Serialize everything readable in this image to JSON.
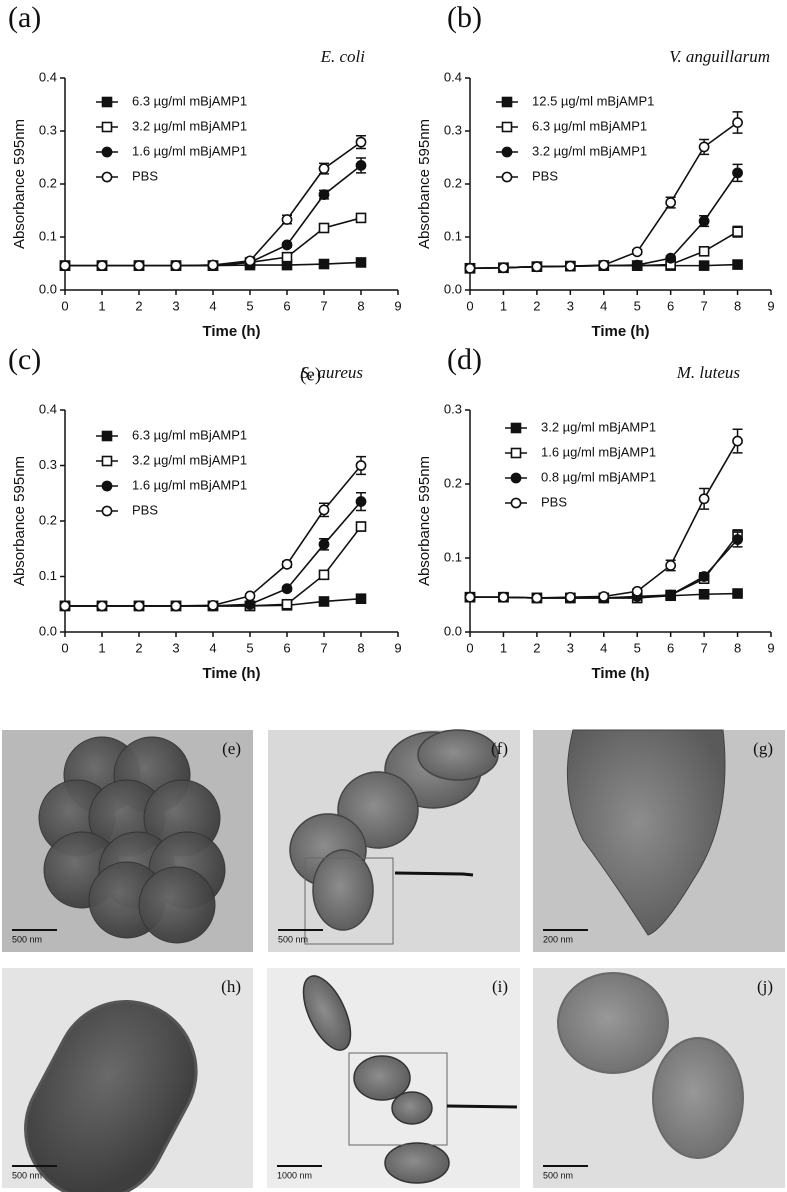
{
  "chart_data": [
    {
      "type": "line",
      "panel_label": "(a)",
      "title": "E. coli",
      "y_label": "Absorbance 595nm",
      "x_label": "Time (h)",
      "x": [
        0,
        1,
        2,
        3,
        4,
        5,
        6,
        7,
        8
      ],
      "xlim": [
        0,
        9
      ],
      "xticks": [
        0,
        1,
        2,
        3,
        4,
        5,
        6,
        7,
        8,
        9
      ],
      "ylim": [
        0,
        0.4
      ],
      "yticks": [
        {
          "value": 0,
          "label": "0.0"
        },
        0.1,
        0.2,
        0.3,
        0.4
      ],
      "series": [
        {
          "name": "6.3 µg/ml mBjAMP1",
          "color": "#111111",
          "marker": "square-filled",
          "values": [
            0.046,
            0.046,
            0.046,
            0.046,
            0.046,
            0.047,
            0.047,
            0.049,
            0.052
          ],
          "errors": [
            0.002,
            0.002,
            0.002,
            0.002,
            0.002,
            0.002,
            0.002,
            0.002,
            0.002
          ]
        },
        {
          "name": "3.2 µg/ml mBjAMP1",
          "color": "#111111",
          "marker": "square-open",
          "values": [
            0.046,
            0.046,
            0.046,
            0.046,
            0.046,
            0.052,
            0.062,
            0.117,
            0.136
          ],
          "errors": [
            0.002,
            0.002,
            0.002,
            0.002,
            0.002,
            0.003,
            0.004,
            0.005,
            0.005
          ]
        },
        {
          "name": "1.6 µg/ml mBjAMP1",
          "color": "#111111",
          "marker": "circle-filled",
          "values": [
            0.046,
            0.046,
            0.046,
            0.046,
            0.047,
            0.052,
            0.085,
            0.18,
            0.235
          ],
          "errors": [
            0.002,
            0.002,
            0.002,
            0.002,
            0.002,
            0.003,
            0.004,
            0.008,
            0.014
          ]
        },
        {
          "name": "PBS",
          "color": "#111111",
          "marker": "circle-open",
          "values": [
            0.046,
            0.046,
            0.046,
            0.046,
            0.047,
            0.055,
            0.133,
            0.229,
            0.279
          ],
          "errors": [
            0.002,
            0.002,
            0.002,
            0.002,
            0.002,
            0.003,
            0.008,
            0.01,
            0.012
          ]
        }
      ]
    },
    {
      "type": "line",
      "panel_label": "(b)",
      "title": "V. anguillarum",
      "y_label": "Absorbance 595nm",
      "x_label": "Time (h)",
      "x": [
        0,
        1,
        2,
        3,
        4,
        5,
        6,
        7,
        8
      ],
      "xlim": [
        0,
        9
      ],
      "xticks": [
        0,
        1,
        2,
        3,
        4,
        5,
        6,
        7,
        8,
        9
      ],
      "ylim": [
        0,
        0.4
      ],
      "yticks": [
        {
          "value": 0,
          "label": "0.0"
        },
        0.1,
        0.2,
        0.3,
        0.4
      ],
      "series": [
        {
          "name": "12.5 µg/ml mBjAMP1",
          "color": "#111111",
          "marker": "square-filled",
          "values": [
            0.041,
            0.042,
            0.044,
            0.045,
            0.046,
            0.046,
            0.046,
            0.046,
            0.048
          ],
          "errors": [
            0.002,
            0.002,
            0.002,
            0.002,
            0.002,
            0.002,
            0.002,
            0.002,
            0.002
          ]
        },
        {
          "name": "6.3 µg/ml mBjAMP1",
          "color": "#111111",
          "marker": "square-open",
          "values": [
            0.041,
            0.042,
            0.044,
            0.045,
            0.046,
            0.046,
            0.048,
            0.073,
            0.11
          ],
          "errors": [
            0.002,
            0.002,
            0.002,
            0.002,
            0.002,
            0.002,
            0.003,
            0.005,
            0.01
          ]
        },
        {
          "name": "3.2 µg/ml mBjAMP1",
          "color": "#111111",
          "marker": "circle-filled",
          "values": [
            0.041,
            0.042,
            0.044,
            0.045,
            0.046,
            0.047,
            0.06,
            0.13,
            0.221
          ],
          "errors": [
            0.002,
            0.002,
            0.002,
            0.002,
            0.002,
            0.002,
            0.004,
            0.01,
            0.016
          ]
        },
        {
          "name": "PBS",
          "color": "#111111",
          "marker": "circle-open",
          "values": [
            0.041,
            0.042,
            0.044,
            0.045,
            0.047,
            0.072,
            0.165,
            0.27,
            0.316
          ],
          "errors": [
            0.002,
            0.002,
            0.002,
            0.002,
            0.002,
            0.004,
            0.01,
            0.014,
            0.02
          ]
        }
      ]
    },
    {
      "type": "line",
      "panel_label": "(c)",
      "title": "S. aureus",
      "annotation": "(e)",
      "y_label": "Absorbance 595nm",
      "x_label": "Time (h)",
      "x": [
        0,
        1,
        2,
        3,
        4,
        5,
        6,
        7,
        8
      ],
      "xlim": [
        0,
        9
      ],
      "xticks": [
        0,
        1,
        2,
        3,
        4,
        5,
        6,
        7,
        8,
        9
      ],
      "ylim": [
        0,
        0.4
      ],
      "yticks": [
        {
          "value": 0,
          "label": "0.0"
        },
        0.1,
        0.2,
        0.3,
        0.4
      ],
      "series": [
        {
          "name": "6.3 µg/ml mBjAMP1",
          "color": "#111111",
          "marker": "square-filled",
          "values": [
            0.047,
            0.047,
            0.047,
            0.047,
            0.047,
            0.047,
            0.048,
            0.055,
            0.06
          ],
          "errors": [
            0.002,
            0.002,
            0.002,
            0.002,
            0.002,
            0.002,
            0.002,
            0.002,
            0.002
          ]
        },
        {
          "name": "3.2 µg/ml mBjAMP1",
          "color": "#111111",
          "marker": "square-open",
          "values": [
            0.047,
            0.047,
            0.047,
            0.047,
            0.047,
            0.047,
            0.05,
            0.103,
            0.19
          ],
          "errors": [
            0.002,
            0.002,
            0.002,
            0.002,
            0.002,
            0.002,
            0.003,
            0.006,
            0.008
          ]
        },
        {
          "name": "1.6 µg/ml mBjAMP1",
          "color": "#111111",
          "marker": "circle-filled",
          "values": [
            0.047,
            0.047,
            0.047,
            0.047,
            0.047,
            0.05,
            0.078,
            0.158,
            0.235
          ],
          "errors": [
            0.002,
            0.002,
            0.002,
            0.002,
            0.002,
            0.002,
            0.004,
            0.01,
            0.016
          ]
        },
        {
          "name": "PBS",
          "color": "#111111",
          "marker": "circle-open",
          "values": [
            0.047,
            0.047,
            0.047,
            0.047,
            0.048,
            0.065,
            0.122,
            0.22,
            0.3
          ],
          "errors": [
            0.002,
            0.002,
            0.002,
            0.002,
            0.002,
            0.003,
            0.005,
            0.012,
            0.016
          ]
        }
      ]
    },
    {
      "type": "line",
      "panel_label": "(d)",
      "title": "M. luteus",
      "y_label": "Absorbance 595nm",
      "x_label": "Time (h)",
      "x": [
        0,
        1,
        2,
        3,
        4,
        5,
        6,
        7,
        8
      ],
      "xlim": [
        0,
        9
      ],
      "xticks": [
        0,
        1,
        2,
        3,
        4,
        5,
        6,
        7,
        8,
        9
      ],
      "ylim": [
        0,
        0.3
      ],
      "yticks": [
        {
          "value": 0,
          "label": "0.0"
        },
        0.1,
        0.2,
        0.3
      ],
      "series": [
        {
          "name": "3.2 µg/ml mBjAMP1",
          "color": "#111111",
          "marker": "square-filled",
          "values": [
            0.047,
            0.047,
            0.046,
            0.046,
            0.046,
            0.046,
            0.049,
            0.051,
            0.052
          ],
          "errors": [
            0.002,
            0.002,
            0.002,
            0.002,
            0.002,
            0.002,
            0.002,
            0.002,
            0.002
          ]
        },
        {
          "name": "1.6 µg/ml mBjAMP1",
          "color": "#111111",
          "marker": "square-open",
          "values": [
            0.047,
            0.047,
            0.046,
            0.046,
            0.046,
            0.046,
            0.05,
            0.072,
            0.131
          ],
          "errors": [
            0.002,
            0.002,
            0.002,
            0.002,
            0.002,
            0.002,
            0.003,
            0.005,
            0.007
          ]
        },
        {
          "name": "0.8 µg/ml mBjAMP1",
          "color": "#111111",
          "marker": "circle-filled",
          "values": [
            0.047,
            0.047,
            0.046,
            0.046,
            0.046,
            0.048,
            0.05,
            0.075,
            0.125
          ],
          "errors": [
            0.002,
            0.002,
            0.002,
            0.002,
            0.002,
            0.002,
            0.003,
            0.005,
            0.01
          ]
        },
        {
          "name": "PBS",
          "color": "#111111",
          "marker": "circle-open",
          "values": [
            0.047,
            0.047,
            0.046,
            0.047,
            0.048,
            0.055,
            0.09,
            0.18,
            0.258
          ],
          "errors": [
            0.002,
            0.002,
            0.002,
            0.002,
            0.002,
            0.003,
            0.007,
            0.014,
            0.016
          ]
        }
      ]
    }
  ],
  "micrographs": [
    {
      "label": "(e)",
      "scale": "500 nm"
    },
    {
      "label": "(f)",
      "scale": "500 nm"
    },
    {
      "label": "(g)",
      "scale": "200 nm"
    },
    {
      "label": "(h)",
      "scale": "500 nm"
    },
    {
      "label": "(i)",
      "scale": "1000 nm"
    },
    {
      "label": "(j)",
      "scale": "500 nm"
    }
  ]
}
